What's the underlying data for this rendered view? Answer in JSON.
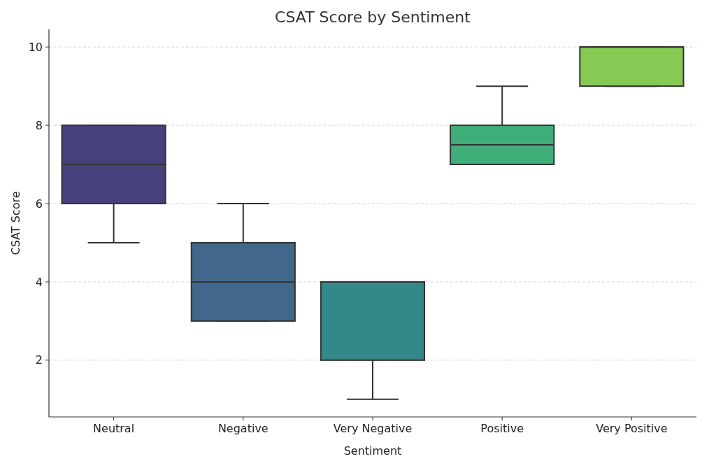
{
  "chart_data": {
    "type": "box",
    "title": "CSAT Score by Sentiment",
    "xlabel": "Sentiment",
    "ylabel": "CSAT Score",
    "categories": [
      "Neutral",
      "Negative",
      "Very Negative",
      "Positive",
      "Very Positive"
    ],
    "colors": [
      "#46417a",
      "#41678a",
      "#35888a",
      "#3fae79",
      "#86c953"
    ],
    "boxes": [
      {
        "low": 5,
        "q1": 6,
        "median": 7,
        "q3": 8,
        "high": 8
      },
      {
        "low": 3,
        "q1": 3,
        "median": 4,
        "q3": 5,
        "high": 6
      },
      {
        "low": 1,
        "q1": 2,
        "median": 4,
        "q3": 4,
        "high": 4
      },
      {
        "low": 7,
        "q1": 7,
        "median": 7.5,
        "q3": 8,
        "high": 9
      },
      {
        "low": 9,
        "q1": 9,
        "median": 10,
        "q3": 10,
        "high": 10
      }
    ],
    "ylim": [
      0.55,
      10.45
    ],
    "yticks": [
      2,
      4,
      6,
      8,
      10
    ],
    "grid": "y"
  }
}
